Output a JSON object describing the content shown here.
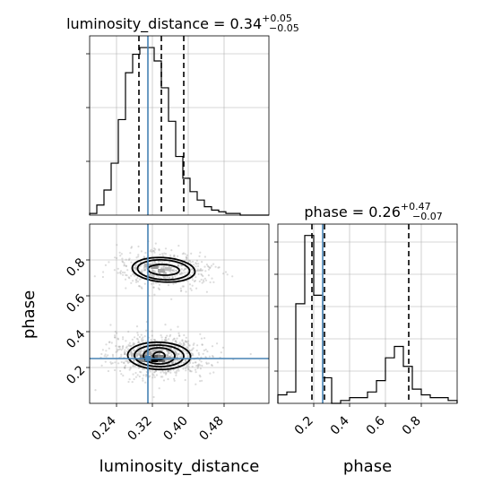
{
  "titles": {
    "luminosity_distance": {
      "base": "luminosity_distance = 0.34",
      "sup": "+0.05",
      "sub": "−0.05"
    },
    "phase": {
      "base": "phase = 0.26",
      "sup": "+0.47",
      "sub": "−0.07"
    }
  },
  "axis_labels": {
    "x_left": "luminosity_distance",
    "x_right": "phase",
    "y_left": "phase"
  },
  "colors": {
    "truth": "#4682b4",
    "hist": "#000000",
    "quantile": "#000000",
    "grid": "#b0b0b0",
    "points": "#9a9a9a"
  },
  "chart_data": [
    {
      "type": "histogram",
      "parameter": "luminosity_distance",
      "xlim": [
        0.18,
        0.58
      ],
      "bin_width": 0.016,
      "bins_start": 0.18,
      "counts": [
        1,
        6,
        15,
        31,
        57,
        85,
        96,
        100,
        100,
        92,
        76,
        56,
        35,
        22,
        14,
        9,
        5,
        3,
        2,
        1,
        1,
        0,
        0,
        0,
        0
      ],
      "ylim": [
        0,
        107
      ],
      "quantiles": [
        0.29,
        0.34,
        0.39
      ],
      "truth": 0.31,
      "grid": true
    },
    {
      "type": "histogram",
      "parameter": "phase",
      "xlim": [
        0.0,
        1.0
      ],
      "bin_width": 0.05,
      "bins_start": 0.0,
      "counts": [
        3,
        4,
        35,
        59,
        38,
        9,
        0,
        1,
        2,
        2,
        4,
        8,
        16,
        20,
        13,
        5,
        3,
        2,
        2,
        1
      ],
      "ylim": [
        0,
        63
      ],
      "quantiles": [
        0.19,
        0.26,
        0.73
      ],
      "truth": 0.25,
      "grid": true
    },
    {
      "type": "scatter",
      "x_parameter": "luminosity_distance",
      "y_parameter": "phase",
      "xlim": [
        0.18,
        0.58
      ],
      "ylim": [
        0.0,
        1.0
      ],
      "x_ticks": [
        0.24,
        0.32,
        0.4,
        0.48
      ],
      "y_ticks": [
        0.2,
        0.4,
        0.6,
        0.8
      ],
      "truth": {
        "x": 0.31,
        "y": 0.25
      },
      "modes": [
        {
          "center": {
            "x": 0.335,
            "y": 0.265
          },
          "contours": [
            {
              "sx": 0.013,
              "sy": 0.022,
              "tilt": 0.002
            },
            {
              "sx": 0.035,
              "sy": 0.045,
              "tilt": -0.003
            },
            {
              "sx": 0.055,
              "sy": 0.06,
              "tilt": -0.004
            },
            {
              "sx": 0.07,
              "sy": 0.076,
              "tilt": -0.006
            }
          ],
          "density": [
            {
              "x": 0.325,
              "y": 0.24,
              "level": 1.0
            },
            {
              "x": 0.31,
              "y": 0.24,
              "level": 0.65
            },
            {
              "x": 0.325,
              "y": 0.26,
              "level": 0.6
            },
            {
              "x": 0.34,
              "y": 0.24,
              "level": 0.55
            },
            {
              "x": 0.3,
              "y": 0.26,
              "level": 0.45
            },
            {
              "x": 0.34,
              "y": 0.26,
              "level": 0.45
            },
            {
              "x": 0.295,
              "y": 0.24,
              "level": 0.4
            },
            {
              "x": 0.355,
              "y": 0.25,
              "level": 0.3
            },
            {
              "x": 0.31,
              "y": 0.28,
              "level": 0.3
            },
            {
              "x": 0.37,
              "y": 0.25,
              "level": 0.18
            },
            {
              "x": 0.28,
              "y": 0.27,
              "level": 0.18
            }
          ]
        },
        {
          "center": {
            "x": 0.345,
            "y": 0.745
          },
          "contours": [
            {
              "sx": 0.035,
              "sy": 0.03,
              "tilt": -0.01
            },
            {
              "sx": 0.058,
              "sy": 0.055,
              "tilt": -0.012
            },
            {
              "sx": 0.07,
              "sy": 0.068,
              "tilt": -0.014
            }
          ],
          "density": [
            {
              "x": 0.325,
              "y": 0.76,
              "level": 0.35
            },
            {
              "x": 0.34,
              "y": 0.74,
              "level": 0.3
            },
            {
              "x": 0.31,
              "y": 0.77,
              "level": 0.22
            },
            {
              "x": 0.355,
              "y": 0.75,
              "level": 0.2
            }
          ]
        }
      ],
      "grid": true
    }
  ]
}
